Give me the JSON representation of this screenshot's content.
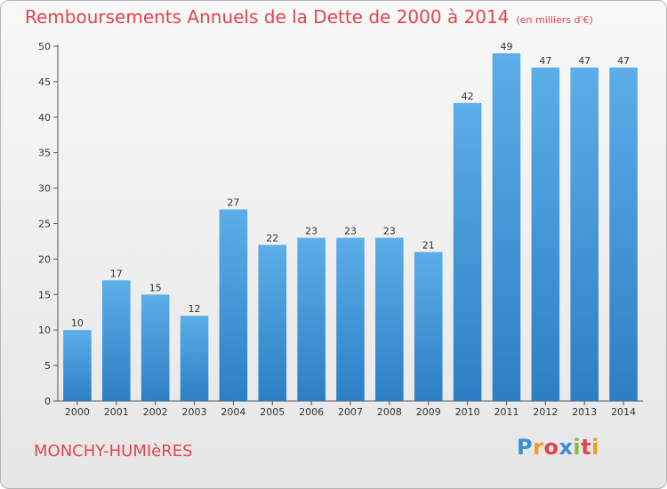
{
  "header": {
    "title": "Remboursements Annuels de la Dette de 2000 à 2014",
    "unit": "(en milliers d'€)"
  },
  "footer": {
    "commune": "MONCHY-HUMIèRES",
    "logo_letters": [
      "P",
      "r",
      "o",
      "x",
      "i",
      "t",
      "i"
    ],
    "logo_colors": [
      "#3a8fd6",
      "#f39a1f",
      "#e0454f",
      "#3a8fd6",
      "#7cbf3f",
      "#e0454f",
      "#f39a1f"
    ]
  },
  "chart_data": {
    "type": "bar",
    "title": "Remboursements Annuels de la Dette de 2000 à 2014",
    "categories": [
      "2000",
      "2001",
      "2002",
      "2003",
      "2004",
      "2005",
      "2006",
      "2007",
      "2008",
      "2009",
      "2010",
      "2011",
      "2012",
      "2013",
      "2014"
    ],
    "values": [
      10,
      17,
      15,
      12,
      27,
      22,
      23,
      23,
      23,
      21,
      42,
      49,
      47,
      47,
      47
    ],
    "value_labels": [
      "10",
      "17",
      "15",
      "12",
      "27",
      "22",
      "23",
      "23",
      "23",
      "21",
      "42",
      "49",
      "47",
      "47",
      "47"
    ],
    "ylim": [
      0,
      50
    ],
    "yticks": [
      0,
      5,
      10,
      15,
      20,
      25,
      30,
      35,
      40,
      45,
      50
    ],
    "ytick_labels": [
      "0",
      "5",
      "10",
      "15",
      "20",
      "25",
      "30",
      "35",
      "40",
      "45",
      "50"
    ],
    "grid": false,
    "bar_color_top": "#5caee8",
    "bar_color_bottom": "#2c7fc4"
  }
}
